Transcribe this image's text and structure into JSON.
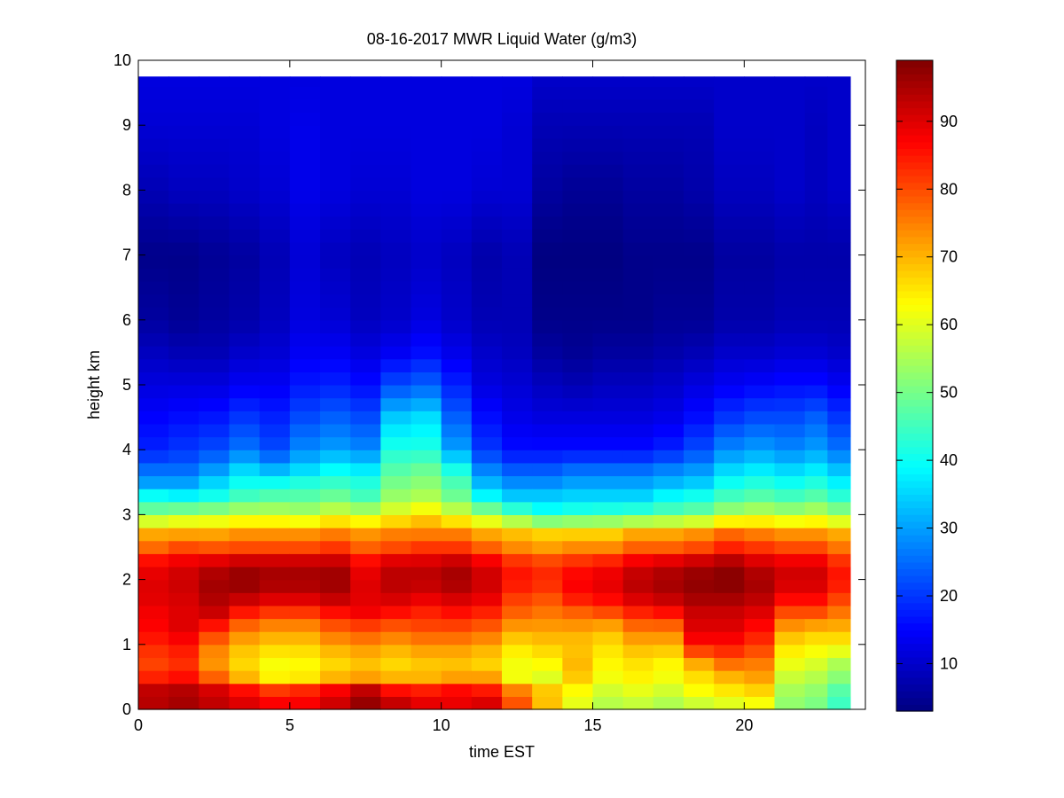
{
  "chart_data": {
    "type": "heatmap",
    "title": "08-16-2017 MWR Liquid Water (g/m3)",
    "xlabel": "time EST",
    "ylabel": "height km",
    "xlim": [
      0,
      24
    ],
    "ylim": [
      0,
      10
    ],
    "data_extent": {
      "x": [
        0,
        23.5
      ],
      "y": [
        0,
        9.75
      ]
    },
    "x_ticks": [
      0,
      5,
      10,
      15,
      20
    ],
    "y_ticks": [
      0,
      1,
      2,
      3,
      4,
      5,
      6,
      7,
      8,
      9,
      10
    ],
    "colorbar": {
      "colormap": "jet",
      "range": [
        3,
        99
      ],
      "ticks": [
        10,
        20,
        30,
        40,
        50,
        60,
        70,
        80,
        90
      ]
    },
    "grid": false,
    "x_centers": [
      0.5,
      1.5,
      2.5,
      3.5,
      4.5,
      5.5,
      6.5,
      7.5,
      8.5,
      9.5,
      10.5,
      11.5,
      12.5,
      13.5,
      14.5,
      15.5,
      16.5,
      17.5,
      18.5,
      19.5,
      20.5,
      21.5,
      22.5,
      23.0
    ],
    "profile_heights_km": [
      0,
      0.25,
      0.5,
      0.75,
      1.0,
      1.25,
      1.5,
      1.75,
      2.0,
      2.25,
      2.5,
      2.75,
      3.0,
      3.25,
      3.5,
      3.75,
      4.0,
      4.5,
      5.0,
      5.5,
      6.0,
      7.0,
      8.0,
      9.0,
      9.75
    ],
    "profiles": [
      [
        93,
        95,
        84,
        80,
        84,
        87,
        88,
        90,
        90,
        88,
        77,
        70,
        52,
        42,
        30,
        24,
        18,
        15,
        12,
        9,
        6,
        4,
        8,
        11,
        12
      ],
      [
        95,
        96,
        86,
        82,
        86,
        90,
        90,
        91,
        92,
        90,
        80,
        70,
        55,
        40,
        30,
        24,
        20,
        16,
        12,
        8,
        5,
        4,
        9,
        11,
        12
      ],
      [
        92,
        94,
        78,
        72,
        76,
        84,
        92,
        95,
        96,
        92,
        79,
        70,
        56,
        42,
        35,
        28,
        22,
        17,
        12,
        8,
        6,
        5,
        9,
        11,
        12
      ],
      [
        90,
        90,
        70,
        66,
        70,
        76,
        85,
        94,
        98,
        94,
        80,
        72,
        58,
        46,
        40,
        34,
        26,
        20,
        14,
        10,
        7,
        6,
        10,
        11,
        12
      ],
      [
        88,
        86,
        64,
        62,
        68,
        73,
        82,
        92,
        96,
        94,
        80,
        72,
        58,
        48,
        40,
        30,
        22,
        18,
        14,
        11,
        9,
        8,
        11,
        12,
        12
      ],
      [
        87,
        88,
        65,
        63,
        68,
        73,
        82,
        92,
        96,
        94,
        80,
        72,
        56,
        48,
        42,
        34,
        28,
        22,
        17,
        14,
        12,
        11,
        13,
        13,
        12
      ],
      [
        91,
        92,
        70,
        66,
        72,
        78,
        86,
        94,
        97,
        94,
        82,
        74,
        60,
        50,
        44,
        38,
        30,
        24,
        18,
        14,
        11,
        9,
        12,
        12,
        12
      ],
      [
        96,
        98,
        72,
        68,
        74,
        80,
        88,
        90,
        90,
        88,
        78,
        72,
        58,
        46,
        42,
        36,
        28,
        22,
        16,
        12,
        9,
        8,
        11,
        12,
        12
      ],
      [
        94,
        90,
        70,
        66,
        72,
        78,
        86,
        92,
        94,
        92,
        80,
        74,
        62,
        54,
        50,
        46,
        42,
        34,
        22,
        14,
        10,
        9,
        11,
        12,
        12
      ],
      [
        90,
        88,
        70,
        68,
        74,
        80,
        84,
        90,
        94,
        92,
        82,
        74,
        66,
        56,
        52,
        48,
        42,
        36,
        24,
        16,
        12,
        10,
        12,
        12,
        12
      ],
      [
        88,
        90,
        72,
        68,
        74,
        80,
        86,
        92,
        96,
        94,
        82,
        74,
        60,
        50,
        46,
        40,
        30,
        24,
        18,
        13,
        10,
        9,
        12,
        12,
        12
      ],
      [
        92,
        88,
        72,
        66,
        72,
        78,
        84,
        90,
        92,
        90,
        78,
        70,
        55,
        40,
        32,
        26,
        20,
        16,
        12,
        10,
        8,
        7,
        11,
        12,
        12
      ],
      [
        80,
        78,
        62,
        62,
        66,
        72,
        78,
        82,
        86,
        84,
        74,
        68,
        48,
        35,
        28,
        22,
        16,
        13,
        11,
        9,
        8,
        8,
        11,
        11,
        12
      ],
      [
        68,
        70,
        60,
        64,
        68,
        72,
        76,
        80,
        84,
        82,
        72,
        66,
        42,
        35,
        28,
        22,
        16,
        12,
        9,
        6,
        4,
        3,
        6,
        8,
        10
      ],
      [
        60,
        62,
        68,
        70,
        68,
        72,
        78,
        86,
        88,
        84,
        74,
        66,
        44,
        36,
        30,
        24,
        16,
        12,
        8,
        5,
        4,
        3,
        5,
        8,
        10
      ],
      [
        55,
        58,
        62,
        64,
        66,
        70,
        80,
        88,
        90,
        86,
        74,
        66,
        45,
        36,
        30,
        24,
        16,
        12,
        9,
        6,
        4,
        3,
        5,
        8,
        10
      ],
      [
        56,
        60,
        64,
        66,
        70,
        76,
        84,
        92,
        94,
        90,
        78,
        70,
        46,
        36,
        30,
        24,
        16,
        12,
        9,
        6,
        4,
        4,
        6,
        8,
        10
      ],
      [
        54,
        58,
        62,
        64,
        70,
        76,
        86,
        94,
        96,
        92,
        78,
        70,
        48,
        40,
        32,
        26,
        18,
        13,
        10,
        7,
        5,
        4,
        6,
        8,
        10
      ],
      [
        56,
        62,
        66,
        72,
        86,
        90,
        92,
        96,
        98,
        94,
        80,
        72,
        50,
        42,
        34,
        28,
        22,
        16,
        12,
        8,
        5,
        4,
        7,
        8,
        10
      ],
      [
        58,
        64,
        70,
        78,
        86,
        90,
        92,
        96,
        99,
        96,
        84,
        76,
        56,
        46,
        40,
        34,
        28,
        20,
        14,
        10,
        7,
        6,
        9,
        10,
        10
      ],
      [
        60,
        66,
        72,
        76,
        82,
        86,
        90,
        94,
        96,
        92,
        82,
        74,
        58,
        48,
        42,
        36,
        30,
        22,
        15,
        10,
        7,
        6,
        9,
        10,
        10
      ],
      [
        52,
        54,
        58,
        62,
        66,
        72,
        80,
        88,
        92,
        90,
        80,
        72,
        56,
        46,
        40,
        34,
        28,
        22,
        16,
        11,
        8,
        7,
        10,
        10,
        10
      ],
      [
        50,
        52,
        56,
        60,
        64,
        70,
        80,
        88,
        92,
        90,
        80,
        72,
        58,
        48,
        42,
        36,
        30,
        24,
        16,
        11,
        8,
        7,
        9,
        9,
        10
      ],
      [
        44,
        46,
        52,
        56,
        64,
        70,
        76,
        82,
        86,
        84,
        76,
        70,
        54,
        44,
        38,
        32,
        26,
        20,
        14,
        10,
        8,
        7,
        10,
        10,
        10
      ]
    ]
  }
}
